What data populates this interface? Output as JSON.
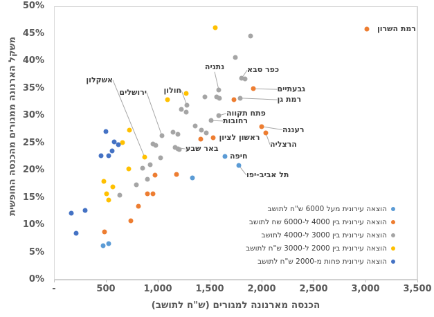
{
  "chart_data": {
    "type": "scatter",
    "title": "",
    "xlabel": "הכנסה מארנונה למגורים (ש\"ח לתושב)",
    "ylabel": "משקל הארנונה ממגורים מהכנסה החופשית",
    "xlim": [
      0,
      3500
    ],
    "ylim": [
      0,
      50
    ],
    "x_tick_step": 500,
    "y_tick_step": 5,
    "x_ticks": [
      "-",
      "500",
      "1,000",
      "1,500",
      "2,000",
      "2,500",
      "3,000",
      "3,500"
    ],
    "y_ticks": [
      "0%",
      "5%",
      "10%",
      "15%",
      "20%",
      "25%",
      "30%",
      "35%",
      "40%",
      "45%",
      "50%"
    ],
    "grid": true,
    "legend_position": "inside-bottom-right",
    "colors": {
      "light_blue": "#5B9BD5",
      "orange": "#ED7D31",
      "gray": "#A5A5A5",
      "yellow": "#FFC000",
      "dark_blue": "#4472C4",
      "gridline": "#D9D9D9",
      "leader_line": "#A6A6A6",
      "tick_text": "#595959",
      "annotation_text": "#404040"
    },
    "series": [
      {
        "name": "הוצאה עירונית מעל 6000 ש\"ח לתושב",
        "color": "#5B9BD5",
        "points": [
          [
            473,
            6.2
          ],
          [
            527,
            6.6
          ],
          [
            1333,
            18.6
          ],
          [
            1647,
            22.5
          ],
          [
            1780,
            20.9
          ]
        ]
      },
      {
        "name": "הוצאה עירונית בין 4000 ל-6000 שח לתושב",
        "color": "#ED7D31",
        "points": [
          [
            487,
            8.7
          ],
          [
            740,
            10.8
          ],
          [
            813,
            13.4
          ],
          [
            900,
            15.7
          ],
          [
            953,
            15.7
          ],
          [
            973,
            19.1
          ],
          [
            1180,
            19.2
          ],
          [
            1413,
            25.7
          ],
          [
            1533,
            25.9
          ],
          [
            1733,
            32.9
          ],
          [
            1920,
            34.9
          ],
          [
            2000,
            28.0
          ],
          [
            2040,
            26.8
          ],
          [
            3013,
            45.8
          ]
        ]
      },
      {
        "name": "הוצאה עירונית בין 3000 ל-4000 לתושב",
        "color": "#A5A5A5",
        "points": [
          [
            1893,
            44.6
          ],
          [
            1747,
            40.6
          ],
          [
            1807,
            36.8
          ],
          [
            1840,
            36.7
          ],
          [
            1587,
            34.7
          ],
          [
            1453,
            33.4
          ],
          [
            1567,
            33.4
          ],
          [
            1593,
            33.2
          ],
          [
            1793,
            33.2
          ],
          [
            1280,
            31.9
          ],
          [
            1227,
            31.1
          ],
          [
            1273,
            30.6
          ],
          [
            1587,
            30.0
          ],
          [
            1513,
            29.1
          ],
          [
            1360,
            28.1
          ],
          [
            1420,
            27.3
          ],
          [
            1467,
            26.8
          ],
          [
            1147,
            27.0
          ],
          [
            1193,
            26.6
          ],
          [
            1040,
            26.3
          ],
          [
            953,
            24.8
          ],
          [
            980,
            24.6
          ],
          [
            1167,
            24.2
          ],
          [
            1193,
            23.9
          ],
          [
            1207,
            23.8
          ],
          [
            1027,
            22.3
          ],
          [
            927,
            21.0
          ],
          [
            853,
            20.4
          ],
          [
            900,
            18.4
          ],
          [
            793,
            17.3
          ],
          [
            633,
            15.4
          ]
        ]
      },
      {
        "name": "הוצאה עירונית בין 2000 ל-3000 ש\"ח לתושב",
        "color": "#FFC000",
        "points": [
          [
            1553,
            46.1
          ],
          [
            1273,
            34.1
          ],
          [
            1093,
            32.9
          ],
          [
            873,
            22.4
          ],
          [
            727,
            27.3
          ],
          [
            660,
            25.1
          ],
          [
            720,
            20.3
          ],
          [
            480,
            18.0
          ],
          [
            567,
            17.0
          ],
          [
            507,
            15.7
          ],
          [
            527,
            14.6
          ]
        ]
      },
      {
        "name": "הוצאה עירונית פחות מ-2000 ש\"ח לתושב",
        "color": "#4472C4",
        "points": [
          [
            167,
            12.2
          ],
          [
            300,
            12.7
          ],
          [
            213,
            8.5
          ],
          [
            453,
            22.7
          ],
          [
            527,
            22.7
          ],
          [
            500,
            27.1
          ],
          [
            560,
            23.5
          ],
          [
            580,
            25.2
          ],
          [
            620,
            24.7
          ]
        ]
      }
    ],
    "annotations": [
      {
        "text": "רמת השרון",
        "sx": 3013,
        "sy": 45.8,
        "lx": 3113,
        "ly": 45.8,
        "align": "left",
        "line": false
      },
      {
        "text": "נתניה",
        "sx": 1587,
        "sy": 34.7,
        "lx": 1547,
        "ly": 38.0,
        "align": "center",
        "line": true
      },
      {
        "text": "כפר סבא",
        "sx": 1807,
        "sy": 36.8,
        "lx": 1860,
        "ly": 38.3,
        "align": "left",
        "line": true
      },
      {
        "text": "גבעתיים",
        "sx": 1920,
        "sy": 34.9,
        "lx": 2150,
        "ly": 34.8,
        "align": "left",
        "line": true
      },
      {
        "text": "רמת גן",
        "sx": 1793,
        "sy": 33.2,
        "lx": 2150,
        "ly": 32.9,
        "align": "left",
        "line": true
      },
      {
        "text": "חולון",
        "sx": 1280,
        "sy": 31.9,
        "lx": 1227,
        "ly": 34.6,
        "align": "right",
        "line": true
      },
      {
        "text": "ירושלים",
        "sx": 1040,
        "sy": 26.3,
        "lx": 893,
        "ly": 34.2,
        "align": "right",
        "line": true
      },
      {
        "text": "אשקלון",
        "sx": 873,
        "sy": 22.4,
        "lx": 567,
        "ly": 36.5,
        "align": "right",
        "line": true
      },
      {
        "text": "פתח תקווה",
        "sx": 1587,
        "sy": 30.0,
        "lx": 1660,
        "ly": 30.4,
        "align": "left",
        "line": true
      },
      {
        "text": "רחובות",
        "sx": 1513,
        "sy": 29.1,
        "lx": 1627,
        "ly": 29.0,
        "align": "left",
        "line": true
      },
      {
        "text": "ראשון לציון",
        "sx": 1533,
        "sy": 25.9,
        "lx": 1590,
        "ly": 25.9,
        "align": "left",
        "line": false
      },
      {
        "text": "רעננה",
        "sx": 2000,
        "sy": 28.0,
        "lx": 2200,
        "ly": 27.4,
        "align": "left",
        "line": true
      },
      {
        "text": "הרצליה",
        "sx": 2040,
        "sy": 26.8,
        "lx": 2080,
        "ly": 24.7,
        "align": "left",
        "line": true
      },
      {
        "text": "באר שבע",
        "sx": 1167,
        "sy": 24.2,
        "lx": 1267,
        "ly": 23.9,
        "align": "left",
        "line": true
      },
      {
        "text": "חיפה",
        "sx": 1647,
        "sy": 22.5,
        "lx": 1693,
        "ly": 22.5,
        "align": "left",
        "line": false
      },
      {
        "text": "תל אביב-יפו",
        "sx": 1780,
        "sy": 20.9,
        "lx": 1853,
        "ly": 19.1,
        "align": "left",
        "line": true
      }
    ]
  }
}
